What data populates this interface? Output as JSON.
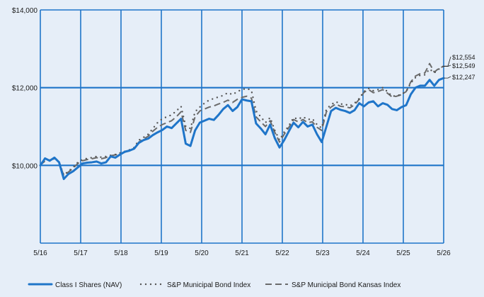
{
  "chart_data": {
    "type": "line",
    "title": "",
    "xlabel": "",
    "ylabel": "",
    "ylim": [
      8000,
      14000
    ],
    "y_tick_values": [
      10000,
      12000,
      14000
    ],
    "y_tick_labels": [
      "$10,000",
      "$12,000",
      "$14,000"
    ],
    "x_tick_labels": [
      "5/16",
      "5/17",
      "5/18",
      "5/19",
      "5/20",
      "5/21",
      "5/22",
      "5/23",
      "5/24",
      "5/25",
      "5/26"
    ],
    "grid": true,
    "legend_position": "bottom",
    "colors": {
      "background": "#e6eef8",
      "grid": "#1f75c9",
      "class_i": "#1f75c9",
      "municipal": "#555555",
      "kansas": "#6b6b6b"
    },
    "series": [
      {
        "name": "Class I Shares (NAV)",
        "end_label": "$12,247",
        "values": [
          10000,
          10180,
          10120,
          10200,
          10080,
          9650,
          9780,
          9850,
          9950,
          10050,
          10070,
          10080,
          10100,
          10050,
          10080,
          10230,
          10200,
          10280,
          10350,
          10380,
          10430,
          10580,
          10650,
          10690,
          10780,
          10850,
          10910,
          11000,
          10960,
          11080,
          11200,
          10560,
          10500,
          10900,
          11100,
          11150,
          11200,
          11170,
          11300,
          11450,
          11550,
          11400,
          11500,
          11700,
          11670,
          11650,
          11080,
          10950,
          10800,
          11050,
          10700,
          10460,
          10650,
          10880,
          11100,
          10980,
          11120,
          11000,
          11050,
          10800,
          10600,
          11000,
          11400,
          11480,
          11430,
          11400,
          11350,
          11420,
          11600,
          11520,
          11620,
          11650,
          11520,
          11600,
          11560,
          11450,
          11420,
          11500,
          11550,
          11830,
          12000,
          12050,
          12050,
          12200,
          12050,
          12200,
          12247
        ]
      },
      {
        "name": "S&P Municipal Bond Index",
        "end_label": "$12,554",
        "values": [
          10000,
          10120,
          10150,
          10180,
          10090,
          9750,
          9850,
          9950,
          10080,
          10150,
          10180,
          10200,
          10230,
          10210,
          10230,
          10260,
          10280,
          10320,
          10360,
          10400,
          10460,
          10650,
          10720,
          10800,
          10950,
          11100,
          11200,
          11250,
          11300,
          11400,
          11520,
          11000,
          10950,
          11380,
          11500,
          11600,
          11680,
          11720,
          11760,
          11800,
          11870,
          11820,
          11900,
          11950,
          11980,
          11930,
          11400,
          11250,
          11100,
          11230,
          10900,
          10650,
          10860,
          11020,
          11230,
          11190,
          11250,
          11180,
          11200,
          11050,
          10960,
          11450,
          11560,
          11640,
          11580,
          11570,
          11530,
          11600,
          11720,
          11900,
          11980,
          11920,
          11950,
          12000,
          11900,
          11780,
          11790,
          11830,
          11900,
          12120,
          12260,
          12320,
          12330,
          12480,
          12380,
          12480,
          12554
        ]
      },
      {
        "name": "S&P Municipal Bond Kansas Index",
        "end_label": "$12,549",
        "values": [
          10000,
          10120,
          10140,
          10170,
          10080,
          9740,
          9830,
          9930,
          10050,
          10120,
          10150,
          10170,
          10200,
          10170,
          10200,
          10250,
          10270,
          10300,
          10340,
          10380,
          10430,
          10600,
          10680,
          10750,
          10880,
          10980,
          11050,
          11100,
          11150,
          11250,
          11380,
          10900,
          10850,
          11250,
          11400,
          11450,
          11500,
          11530,
          11580,
          11620,
          11680,
          11620,
          11700,
          11750,
          11780,
          11730,
          11250,
          11120,
          11000,
          11150,
          10850,
          10600,
          10800,
          10980,
          11180,
          11120,
          11180,
          11100,
          11120,
          10980,
          10900,
          11380,
          11500,
          11580,
          11520,
          11510,
          11480,
          11560,
          11700,
          11880,
          11950,
          11870,
          11900,
          11950,
          11860,
          11760,
          11780,
          11820,
          11900,
          12150,
          12300,
          12360,
          12380,
          12620,
          12400,
          12500,
          12549
        ]
      }
    ]
  }
}
